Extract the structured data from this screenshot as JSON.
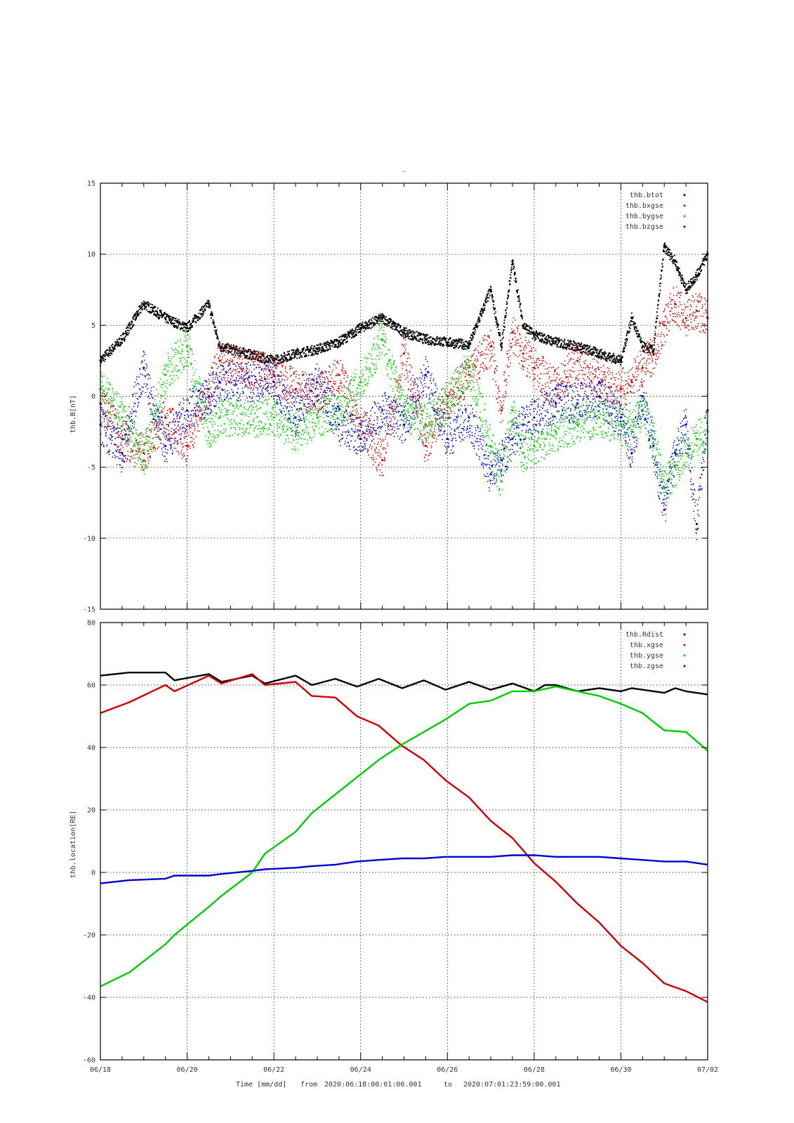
{
  "title_mark": "-",
  "xlabel": {
    "time_label": "Time [mm/dd]",
    "from_word": "from",
    "from_value": "2020:06:18:00:01:00.001",
    "to_word": "to",
    "to_value": "2020:07:01:23:59:00.001"
  },
  "chart_data": [
    {
      "type": "scatter",
      "ylabel": "thb.B[nT]",
      "xlim": [
        "06/18",
        "07/02"
      ],
      "ylim": [
        -15,
        15
      ],
      "yticks": [
        -15,
        -10,
        -5,
        0,
        5,
        10,
        15
      ],
      "xticks": [
        "06/18",
        "06/20",
        "06/22",
        "06/24",
        "06/26",
        "06/28",
        "06/30",
        "07/02"
      ],
      "grid": true,
      "legend_position": "top-right",
      "data_gap": [
        "06/20 20:00",
        "06/21 23:00"
      ],
      "series": [
        {
          "name": "thb.btot",
          "color": "#000000",
          "x": [
            "06/18 00:00",
            "06/18 12:00",
            "06/19 00:00",
            "06/19 12:00",
            "06/20 00:00",
            "06/20 12:00",
            "06/20 18:00",
            "06/22 00:00",
            "06/22 12:00",
            "06/23 00:00",
            "06/23 12:00",
            "06/24 00:00",
            "06/24 12:00",
            "06/25 00:00",
            "06/25 12:00",
            "06/26 00:00",
            "06/26 12:00",
            "06/27 00:00",
            "06/27 06:00",
            "06/27 12:00",
            "06/27 18:00",
            "06/28 00:00",
            "06/28 12:00",
            "06/29 00:00",
            "06/29 12:00",
            "06/30 00:00",
            "06/30 06:00",
            "06/30 12:00",
            "06/30 18:00",
            "07/01 00:00",
            "07/01 06:00",
            "07/01 12:00",
            "07/01 18:00",
            "07/02 00:00"
          ],
          "y": [
            2.5,
            4.0,
            6.5,
            5.5,
            4.8,
            6.5,
            3.5,
            2.5,
            3.0,
            3.3,
            3.8,
            4.8,
            5.5,
            4.5,
            4.0,
            3.8,
            3.6,
            7.5,
            3.5,
            9.5,
            5.0,
            4.3,
            3.8,
            3.5,
            3.0,
            2.5,
            5.5,
            3.5,
            3.2,
            10.5,
            9.5,
            7.5,
            8.5,
            10.0
          ]
        },
        {
          "name": "thb.bxgse",
          "color": "#cc0000",
          "x": [
            "06/18 00:00",
            "06/18 12:00",
            "06/19 00:00",
            "06/19 12:00",
            "06/20 00:00",
            "06/20 12:00",
            "06/20 18:00",
            "06/22 00:00",
            "06/22 12:00",
            "06/23 00:00",
            "06/23 12:00",
            "06/24 00:00",
            "06/24 12:00",
            "06/25 00:00",
            "06/25 12:00",
            "06/26 00:00",
            "06/26 12:00",
            "06/27 00:00",
            "06/27 06:00",
            "06/27 12:00",
            "06/27 18:00",
            "06/28 00:00",
            "06/28 12:00",
            "06/29 00:00",
            "06/29 12:00",
            "06/30 00:00",
            "06/30 06:00",
            "06/30 12:00",
            "06/30 18:00",
            "07/01 00:00",
            "07/01 06:00",
            "07/01 12:00",
            "07/01 18:00",
            "07/02 00:00"
          ],
          "y": [
            -0.5,
            -3.0,
            -4.0,
            -1.5,
            -3.5,
            0.5,
            2.5,
            1.5,
            0.5,
            0.0,
            1.5,
            -2.0,
            -4.5,
            3.0,
            -3.5,
            0.0,
            1.5,
            3.5,
            -1.0,
            4.5,
            3.0,
            2.0,
            0.5,
            2.5,
            1.0,
            0.5,
            1.0,
            2.0,
            3.0,
            5.0,
            6.5,
            5.5,
            6.0,
            5.5
          ]
        },
        {
          "name": "thb.bygse",
          "color": "#00cc00",
          "x": [
            "06/18 00:00",
            "06/18 12:00",
            "06/19 00:00",
            "06/19 12:00",
            "06/20 00:00",
            "06/20 12:00",
            "06/20 18:00",
            "06/22 00:00",
            "06/22 12:00",
            "06/23 00:00",
            "06/23 12:00",
            "06/24 00:00",
            "06/24 12:00",
            "06/25 00:00",
            "06/25 12:00",
            "06/26 00:00",
            "06/26 12:00",
            "06/27 00:00",
            "06/27 06:00",
            "06/27 12:00",
            "06/27 18:00",
            "06/28 00:00",
            "06/28 12:00",
            "06/29 00:00",
            "06/29 12:00",
            "06/30 00:00",
            "06/30 06:00",
            "06/30 12:00",
            "06/30 18:00",
            "07/01 00:00",
            "07/01 06:00",
            "07/01 12:00",
            "07/01 18:00",
            "07/02 00:00"
          ],
          "y": [
            0.5,
            -1.5,
            -4.5,
            1.5,
            3.5,
            -2.5,
            -1.5,
            -1.5,
            -2.5,
            -1.5,
            -1.0,
            1.0,
            4.0,
            -1.0,
            -2.0,
            -0.5,
            2.0,
            -3.5,
            -6.0,
            -1.0,
            -4.0,
            -3.5,
            -2.5,
            -2.0,
            -1.5,
            -2.0,
            -2.5,
            -1.0,
            -3.0,
            -6.5,
            -5.0,
            -4.0,
            -3.0,
            -2.5
          ]
        },
        {
          "name": "thb.bzgse",
          "color": "#0000cc",
          "x": [
            "06/18 00:00",
            "06/18 12:00",
            "06/19 00:00",
            "06/19 12:00",
            "06/20 00:00",
            "06/20 12:00",
            "06/20 18:00",
            "06/22 00:00",
            "06/22 12:00",
            "06/23 00:00",
            "06/23 12:00",
            "06/24 00:00",
            "06/24 12:00",
            "06/25 00:00",
            "06/25 12:00",
            "06/26 00:00",
            "06/26 12:00",
            "06/27 00:00",
            "06/27 06:00",
            "06/27 12:00",
            "06/27 18:00",
            "06/28 00:00",
            "06/28 12:00",
            "06/29 00:00",
            "06/29 12:00",
            "06/30 00:00",
            "06/30 06:00",
            "06/30 12:00",
            "06/30 18:00",
            "07/01 00:00",
            "07/01 06:00",
            "07/01 12:00",
            "07/01 18:00",
            "07/02 00:00"
          ],
          "y": [
            -2.0,
            -4.0,
            2.0,
            -3.5,
            -1.0,
            0.0,
            1.0,
            1.0,
            -1.5,
            1.0,
            -2.0,
            -3.0,
            -1.0,
            -2.0,
            1.5,
            -3.0,
            -1.5,
            -5.5,
            -4.5,
            -3.0,
            -2.0,
            -1.5,
            -0.5,
            -0.5,
            0.0,
            -1.5,
            -4.0,
            0.0,
            -3.5,
            -8.0,
            -4.0,
            -2.0,
            -9.0,
            -1.0
          ]
        }
      ]
    },
    {
      "type": "line",
      "ylabel": "thb.location[RE]",
      "xlim": [
        "06/18",
        "07/02"
      ],
      "ylim": [
        -60,
        80
      ],
      "yticks": [
        -60,
        -40,
        -20,
        0,
        20,
        40,
        60,
        80
      ],
      "xticks": [
        "06/18",
        "06/20",
        "06/22",
        "06/24",
        "06/26",
        "06/28",
        "06/30",
        "07/02"
      ],
      "grid": true,
      "legend_position": "top-right",
      "series": [
        {
          "name": "thb.Rdist",
          "color": "#000000",
          "x": [
            "06/18 00:00",
            "06/18 16:00",
            "06/19 12:00",
            "06/19 17:00",
            "06/20 12:00",
            "06/20 19:00",
            "06/21 12:00",
            "06/21 19:00",
            "06/22 12:00",
            "06/22 21:00",
            "06/23 10:00",
            "06/23 22:00",
            "06/24 10:00",
            "06/24 23:00",
            "06/25 11:00",
            "06/25 23:00",
            "06/26 12:00",
            "06/27 00:00",
            "06/27 12:00",
            "06/28 00:00",
            "06/28 06:00",
            "06/28 12:00",
            "06/29 00:00",
            "06/29 12:00",
            "06/30 00:00",
            "06/30 06:00",
            "06/30 12:00",
            "07/01 00:00",
            "07/01 06:00",
            "07/01 12:00",
            "07/02 00:00"
          ],
          "y": [
            63,
            64,
            64,
            61.5,
            63.5,
            61,
            63,
            60.5,
            63,
            60,
            62,
            59.5,
            62,
            59,
            61.5,
            58.5,
            61,
            58.5,
            60.5,
            58,
            60,
            60,
            58,
            59,
            58,
            59,
            58.5,
            57.5,
            59,
            58,
            57
          ]
        },
        {
          "name": "thb.xgse",
          "color": "#cc0000",
          "x": [
            "06/18 00:00",
            "06/18 16:00",
            "06/19 12:00",
            "06/19 17:00",
            "06/20 12:00",
            "06/20 19:00",
            "06/21 12:00",
            "06/21 19:00",
            "06/22 12:00",
            "06/22 21:00",
            "06/23 10:00",
            "06/23 22:00",
            "06/24 10:00",
            "06/24 23:00",
            "06/25 11:00",
            "06/25 23:00",
            "06/26 12:00",
            "06/27 00:00",
            "06/27 12:00",
            "06/28 00:00",
            "06/28 12:00",
            "06/29 00:00",
            "06/29 12:00",
            "06/30 00:00",
            "06/30 12:00",
            "07/01 00:00",
            "07/01 12:00",
            "07/02 00:00"
          ],
          "y": [
            51,
            54.5,
            60,
            58,
            63,
            60.5,
            63.5,
            60,
            61,
            56.5,
            56,
            50,
            47,
            40.5,
            36,
            29.5,
            24,
            16.5,
            11,
            3,
            -3,
            -10,
            -16,
            -23.5,
            -29,
            -35.5,
            -38,
            -41.5
          ]
        },
        {
          "name": "thb.ygse",
          "color": "#00cc00",
          "x": [
            "06/18 00:00",
            "06/18 16:00",
            "06/19 12:00",
            "06/19 17:00",
            "06/20 12:00",
            "06/20 19:00",
            "06/21 12:00",
            "06/21 19:00",
            "06/22 12:00",
            "06/22 21:00",
            "06/23 10:00",
            "06/23 22:00",
            "06/24 10:00",
            "06/24 23:00",
            "06/25 11:00",
            "06/25 23:00",
            "06/26 12:00",
            "06/27 00:00",
            "06/27 12:00",
            "06/28 00:00",
            "06/28 12:00",
            "06/29 00:00",
            "06/29 12:00",
            "06/30 00:00",
            "06/30 12:00",
            "07/01 00:00",
            "07/01 12:00",
            "07/02 00:00"
          ],
          "y": [
            -36.5,
            -32,
            -23,
            -20,
            -11,
            -7.5,
            0,
            6,
            13,
            19,
            25,
            30.5,
            36,
            41,
            45,
            49,
            54,
            55,
            58,
            58,
            59.5,
            58,
            56.5,
            54,
            51,
            45.5,
            45,
            39
          ]
        },
        {
          "name": "thb.zgse",
          "color": "#0000cc",
          "x": [
            "06/18 00:00",
            "06/18 16:00",
            "06/19 12:00",
            "06/19 17:00",
            "06/20 12:00",
            "06/20 19:00",
            "06/21 12:00",
            "06/21 19:00",
            "06/22 12:00",
            "06/22 21:00",
            "06/23 10:00",
            "06/23 22:00",
            "06/24 10:00",
            "06/24 23:00",
            "06/25 11:00",
            "06/25 23:00",
            "06/26 12:00",
            "06/27 00:00",
            "06/27 12:00",
            "06/28 00:00",
            "06/28 12:00",
            "06/29 00:00",
            "06/29 12:00",
            "06/30 00:00",
            "06/30 12:00",
            "07/01 00:00",
            "07/01 12:00",
            "07/02 00:00"
          ],
          "y": [
            -3.5,
            -2.5,
            -2,
            -1,
            -1,
            -0.5,
            0.5,
            1,
            1.5,
            2,
            2.5,
            3.5,
            4,
            4.5,
            4.5,
            5,
            5,
            5,
            5.5,
            5.5,
            5,
            5,
            5,
            4.5,
            4,
            3.5,
            3.5,
            2.5
          ]
        }
      ]
    }
  ]
}
